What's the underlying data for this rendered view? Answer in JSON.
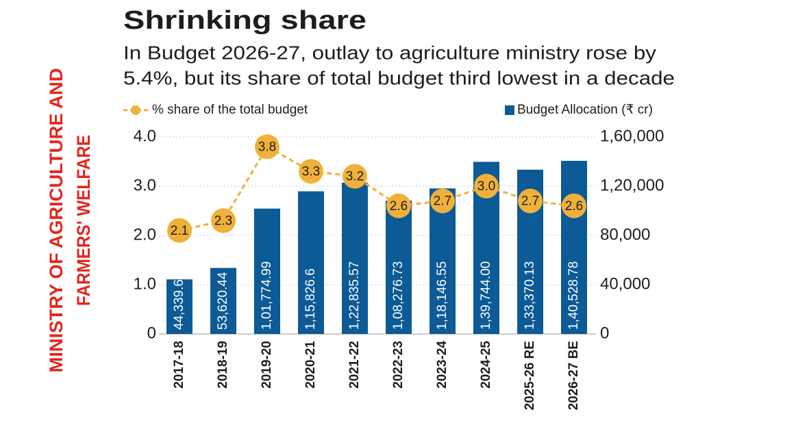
{
  "chart_data": {
    "type": "bar",
    "title": "Shrinking share",
    "subtitle": [
      "In Budget 2026-27, outlay to agriculture ministry rose by",
      "5.4%, but its share of total budget third lowest in a decade"
    ],
    "side_title": [
      "MINISTRY OF AGRICULTURE AND",
      "FARMERS' WELFARE"
    ],
    "categories": [
      "2017-18",
      "2018-19",
      "2019-20",
      "2020-21",
      "2021-22",
      "2022-23",
      "2023-24",
      "2024-25",
      "2025-26 RE",
      "2026-27 BE"
    ],
    "series": [
      {
        "name": "% share of the total budget",
        "type": "line",
        "color": "#f0b13a",
        "axis": "y",
        "values": [
          2.1,
          2.3,
          3.8,
          3.3,
          3.2,
          2.6,
          2.7,
          3.0,
          2.7,
          2.6
        ],
        "value_labels": [
          "2.1",
          "2.3",
          "3.8",
          "3.3",
          "3.2",
          "2.6",
          "2.7",
          "3.0",
          "2.7",
          "2.6"
        ]
      },
      {
        "name": "Budget Allocation (₹ cr)",
        "type": "bar",
        "color": "#0c5a96",
        "axis": "y2",
        "values": [
          44339.64,
          53620.44,
          101774.99,
          115826.6,
          122835.57,
          108276.73,
          118146.55,
          139744.0,
          133370.13,
          140528.78
        ],
        "value_labels": [
          "44,339.64",
          "53,620.44",
          "1,01,774.99",
          "1,15,826.6",
          "1,22,835.57",
          "1,08,276.73",
          "1,18,146.55",
          "1,39,744.00",
          "1,33,370.13",
          "1,40,528.78"
        ]
      }
    ],
    "ylim": [
      0,
      4
    ],
    "yticks": [
      0,
      {
        "value": 1,
        "label": "1.0"
      },
      {
        "value": 2,
        "label": "2.0"
      },
      {
        "value": 3,
        "label": "3.0"
      },
      {
        "value": 4,
        "label": "4.0"
      }
    ],
    "y2lim": [
      0,
      160000
    ],
    "y2ticks": [
      0,
      {
        "value": 40000,
        "label": "40,000"
      },
      {
        "value": 80000,
        "label": "80,000"
      },
      {
        "value": 120000,
        "label": "1,20,000"
      },
      {
        "value": 160000,
        "label": "1,60,000"
      }
    ],
    "grid": true,
    "side_title_color": "#e3261f"
  }
}
